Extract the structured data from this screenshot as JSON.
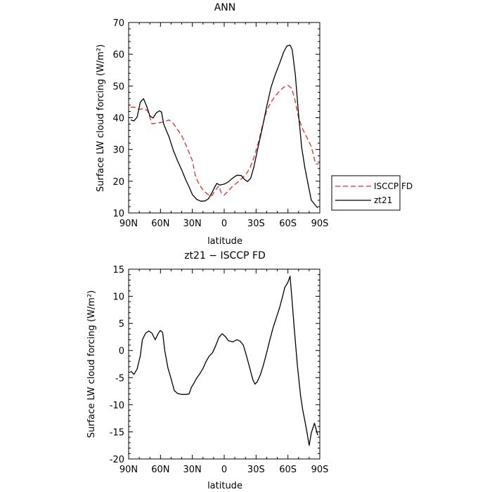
{
  "chart_data": [
    {
      "type": "line",
      "title": "ANN",
      "xlabel": "latitude",
      "ylabel": "Surface LW cloud forcing (W/m²)",
      "xlim": [
        90,
        -90
      ],
      "ylim": [
        10,
        70
      ],
      "x_ticks": [
        90,
        60,
        30,
        0,
        -30,
        -60,
        -90
      ],
      "x_tick_labels": [
        "90N",
        "60N",
        "30N",
        "0",
        "30S",
        "60S",
        "90S"
      ],
      "y_ticks": [
        10,
        20,
        30,
        40,
        50,
        60,
        70
      ],
      "y_tick_labels": [
        "10",
        "20",
        "30",
        "40",
        "50",
        "60",
        "70"
      ],
      "legend": {
        "position": "right",
        "entries": [
          {
            "name": "ISCCP FD",
            "color": "#e8271f",
            "dash": true
          },
          {
            "name": "zt21",
            "color": "#000000",
            "dash": false
          }
        ]
      },
      "series": [
        {
          "name": "ISCCP FD",
          "color": "#e8271f",
          "dash": true,
          "points": [
            [
              88,
              43.3
            ],
            [
              85,
              43.4
            ],
            [
              80,
              42.6
            ],
            [
              76,
              42.9
            ],
            [
              72,
              42.2
            ],
            [
              68,
              38.1
            ],
            [
              64,
              38.3
            ],
            [
              60,
              38.5
            ],
            [
              56,
              38.8
            ],
            [
              52,
              39.3
            ],
            [
              48,
              38.2
            ],
            [
              45,
              36.8
            ],
            [
              40,
              34.3
            ],
            [
              35,
              30.6
            ],
            [
              30,
              26.5
            ],
            [
              27,
              21.5
            ],
            [
              24,
              19.3
            ],
            [
              20,
              17.2
            ],
            [
              16,
              16.0
            ],
            [
              12,
              15.3
            ],
            [
              8,
              17.3
            ],
            [
              5,
              18.5
            ],
            [
              3,
              16.5
            ],
            [
              0,
              15.6
            ],
            [
              -4,
              17.0
            ],
            [
              -8,
              18.5
            ],
            [
              -12,
              19.5
            ],
            [
              -16,
              20.7
            ],
            [
              -20,
              22.0
            ],
            [
              -24,
              24.0
            ],
            [
              -28,
              27.5
            ],
            [
              -32,
              32.0
            ],
            [
              -36,
              37.5
            ],
            [
              -40,
              42.3
            ],
            [
              -44,
              44.9
            ],
            [
              -48,
              46.8
            ],
            [
              -52,
              48.4
            ],
            [
              -56,
              49.6
            ],
            [
              -60,
              50.2
            ],
            [
              -63,
              49.4
            ],
            [
              -66,
              46.6
            ],
            [
              -70,
              40.0
            ],
            [
              -74,
              36.3
            ],
            [
              -78,
              33.7
            ],
            [
              -82,
              30.9
            ],
            [
              -86,
              25.5
            ],
            [
              -89,
              25.4
            ]
          ]
        },
        {
          "name": "zt21",
          "color": "#000000",
          "dash": false,
          "points": [
            [
              88,
              39.3
            ],
            [
              85,
              39.0
            ],
            [
              82,
              40.2
            ],
            [
              79,
              44.9
            ],
            [
              76,
              46.0
            ],
            [
              73,
              43.6
            ],
            [
              70,
              40.6
            ],
            [
              67,
              39.9
            ],
            [
              64,
              41.5
            ],
            [
              61,
              42.2
            ],
            [
              59,
              41.8
            ],
            [
              57,
              38.0
            ],
            [
              52,
              34.0
            ],
            [
              48,
              29.8
            ],
            [
              44,
              26.5
            ],
            [
              40,
              23.5
            ],
            [
              36,
              20.3
            ],
            [
              33,
              18.2
            ],
            [
              30,
              15.8
            ],
            [
              26,
              14.3
            ],
            [
              22,
              13.7
            ],
            [
              18,
              13.8
            ],
            [
              15,
              14.4
            ],
            [
              12,
              16.1
            ],
            [
              9,
              18.1
            ],
            [
              7,
              19.3
            ],
            [
              4,
              18.8
            ],
            [
              0,
              19.1
            ],
            [
              -4,
              19.8
            ],
            [
              -8,
              21.0
            ],
            [
              -12,
              21.9
            ],
            [
              -16,
              21.8
            ],
            [
              -19,
              20.6
            ],
            [
              -22,
              19.9
            ],
            [
              -25,
              21.0
            ],
            [
              -28,
              24.6
            ],
            [
              -32,
              31.0
            ],
            [
              -36,
              37.0
            ],
            [
              -40,
              43.5
            ],
            [
              -44,
              49.5
            ],
            [
              -48,
              53.5
            ],
            [
              -52,
              57.0
            ],
            [
              -56,
              60.7
            ],
            [
              -59,
              62.6
            ],
            [
              -62,
              62.9
            ],
            [
              -64,
              61.5
            ],
            [
              -67,
              53.5
            ],
            [
              -70,
              41.0
            ],
            [
              -73,
              30.5
            ],
            [
              -76,
              24.2
            ],
            [
              -79,
              19.0
            ],
            [
              -82,
              14.0
            ],
            [
              -85,
              12.8
            ],
            [
              -88,
              11.6
            ]
          ]
        }
      ]
    },
    {
      "type": "line",
      "title": "zt21 − ISCCP FD",
      "xlabel": "latitude",
      "ylabel": "Surface LW cloud forcing (W/m²)",
      "xlim": [
        90,
        -90
      ],
      "ylim": [
        -20,
        15
      ],
      "x_ticks": [
        90,
        60,
        30,
        0,
        -30,
        -60,
        -90
      ],
      "x_tick_labels": [
        "90N",
        "60N",
        "30N",
        "0",
        "30S",
        "60S",
        "90S"
      ],
      "y_ticks": [
        -20,
        -15,
        -10,
        -5,
        0,
        5,
        10,
        15
      ],
      "y_tick_labels": [
        "-20",
        "-15",
        "-10",
        "-5",
        "0",
        "5",
        "10",
        "15"
      ],
      "series": [
        {
          "name": "zt21 − ISCCP FD",
          "color": "#000000",
          "dash": false,
          "points": [
            [
              88,
              -3.8
            ],
            [
              85,
              -4.4
            ],
            [
              82,
              -3.4
            ],
            [
              79,
              -1.0
            ],
            [
              77,
              2.0
            ],
            [
              74,
              3.2
            ],
            [
              71,
              3.6
            ],
            [
              68,
              3.2
            ],
            [
              65,
              2.0
            ],
            [
              62,
              3.2
            ],
            [
              60,
              3.7
            ],
            [
              58,
              3.3
            ],
            [
              56,
              0.0
            ],
            [
              53,
              -3.2
            ],
            [
              50,
              -5.2
            ],
            [
              47,
              -7.4
            ],
            [
              44,
              -7.9
            ],
            [
              40,
              -8.1
            ],
            [
              36,
              -8.1
            ],
            [
              33,
              -8.0
            ],
            [
              31,
              -6.8
            ],
            [
              29,
              -6.2
            ],
            [
              26,
              -5.1
            ],
            [
              23,
              -4.3
            ],
            [
              20,
              -3.3
            ],
            [
              17,
              -2.0
            ],
            [
              14,
              -1.0
            ],
            [
              11,
              -0.4
            ],
            [
              8,
              0.9
            ],
            [
              5,
              2.4
            ],
            [
              2,
              3.1
            ],
            [
              -1,
              2.6
            ],
            [
              -4,
              1.8
            ],
            [
              -8,
              1.6
            ],
            [
              -12,
              2.0
            ],
            [
              -15,
              1.7
            ],
            [
              -18,
              1.0
            ],
            [
              -21,
              -1.0
            ],
            [
              -24,
              -3.2
            ],
            [
              -27,
              -5.4
            ],
            [
              -29,
              -6.2
            ],
            [
              -31,
              -5.8
            ],
            [
              -34,
              -4.5
            ],
            [
              -37,
              -2.6
            ],
            [
              -40,
              -0.4
            ],
            [
              -43,
              2.0
            ],
            [
              -46,
              4.2
            ],
            [
              -49,
              6.0
            ],
            [
              -52,
              7.8
            ],
            [
              -55,
              10.0
            ],
            [
              -57,
              11.6
            ],
            [
              -60,
              12.6
            ],
            [
              -62,
              13.7
            ],
            [
              -64,
              9.0
            ],
            [
              -66,
              4.0
            ],
            [
              -69,
              -3.0
            ],
            [
              -72,
              -8.5
            ],
            [
              -74,
              -11.0
            ],
            [
              -76,
              -13.0
            ],
            [
              -78,
              -15.2
            ],
            [
              -80,
              -17.5
            ],
            [
              -82,
              -15.2
            ],
            [
              -85,
              -13.4
            ],
            [
              -88,
              -15.6
            ]
          ]
        }
      ]
    }
  ]
}
